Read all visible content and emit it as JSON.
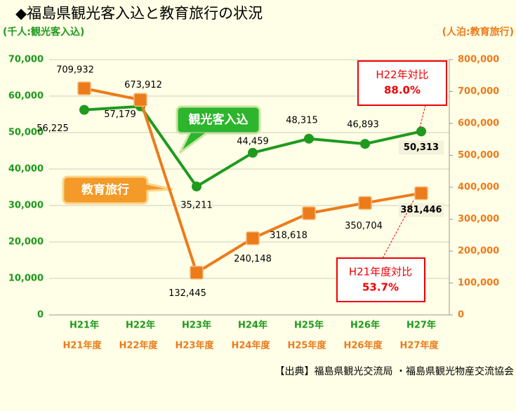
{
  "chart_data": {
    "type": "line",
    "title": "◆福島県観光客入込と教育旅行の状況",
    "y_label": "(千人:観光客入込)",
    "y2_label": "(人泊:教育旅行)",
    "categories": [
      "H21年",
      "H22年",
      "H23年",
      "H24年",
      "H25年",
      "H26年",
      "H27年"
    ],
    "fiscal_years": [
      "H21年度",
      "H22年度",
      "H23年度",
      "H24年度",
      "H25年度",
      "H26年度",
      "H27年度"
    ],
    "series": [
      {
        "name": "観光客入込",
        "color": "#1e9a1e",
        "values": [
          56225,
          57179,
          35211,
          44459,
          48315,
          46893,
          50313
        ],
        "value_labels": [
          "56,225",
          "57,179",
          "35,211",
          "44,459",
          "48,315",
          "46,893",
          "50,313"
        ]
      },
      {
        "name": "教育旅行",
        "color": "#ec7b1c",
        "axis": "y2",
        "values": [
          709932,
          673912,
          132445,
          240148,
          318618,
          350704,
          381446
        ],
        "value_labels": [
          "709,932",
          "673,912",
          "132,445",
          "240,148",
          "318,618",
          "350,704",
          "381,446"
        ]
      }
    ],
    "ylim": [
      0,
      70000
    ],
    "yticks": [
      0,
      {
        "value": 10000,
        "label": "10,000"
      },
      {
        "value": 20000,
        "label": "20,000"
      },
      {
        "value": 30000,
        "label": "30,000"
      },
      {
        "value": 40000,
        "label": "40,000"
      },
      {
        "value": 50000,
        "label": "50,000"
      },
      {
        "value": 60000,
        "label": "60,000"
      },
      {
        "value": 70000,
        "label": "70,000"
      }
    ],
    "y2lim": [
      0,
      800000
    ],
    "y2ticks": [
      0,
      {
        "value": 100000,
        "label": "100,000"
      },
      {
        "value": 200000,
        "label": "200,000"
      },
      {
        "value": 300000,
        "label": "300,000"
      },
      {
        "value": 400000,
        "label": "400,000"
      },
      {
        "value": 500000,
        "label": "500,000"
      },
      {
        "value": 600000,
        "label": "600,000"
      },
      {
        "value": 700000,
        "label": "700,000"
      },
      {
        "value": 800000,
        "label": "800,000"
      }
    ],
    "grid": true,
    "annotations": [
      {
        "title": "H22年対比",
        "text": "88.0%"
      },
      {
        "title": "H21年度対比",
        "text": "53.7%"
      }
    ],
    "source": "【出典】福島県観光交流局 ・福島県観光物産交流協会"
  }
}
